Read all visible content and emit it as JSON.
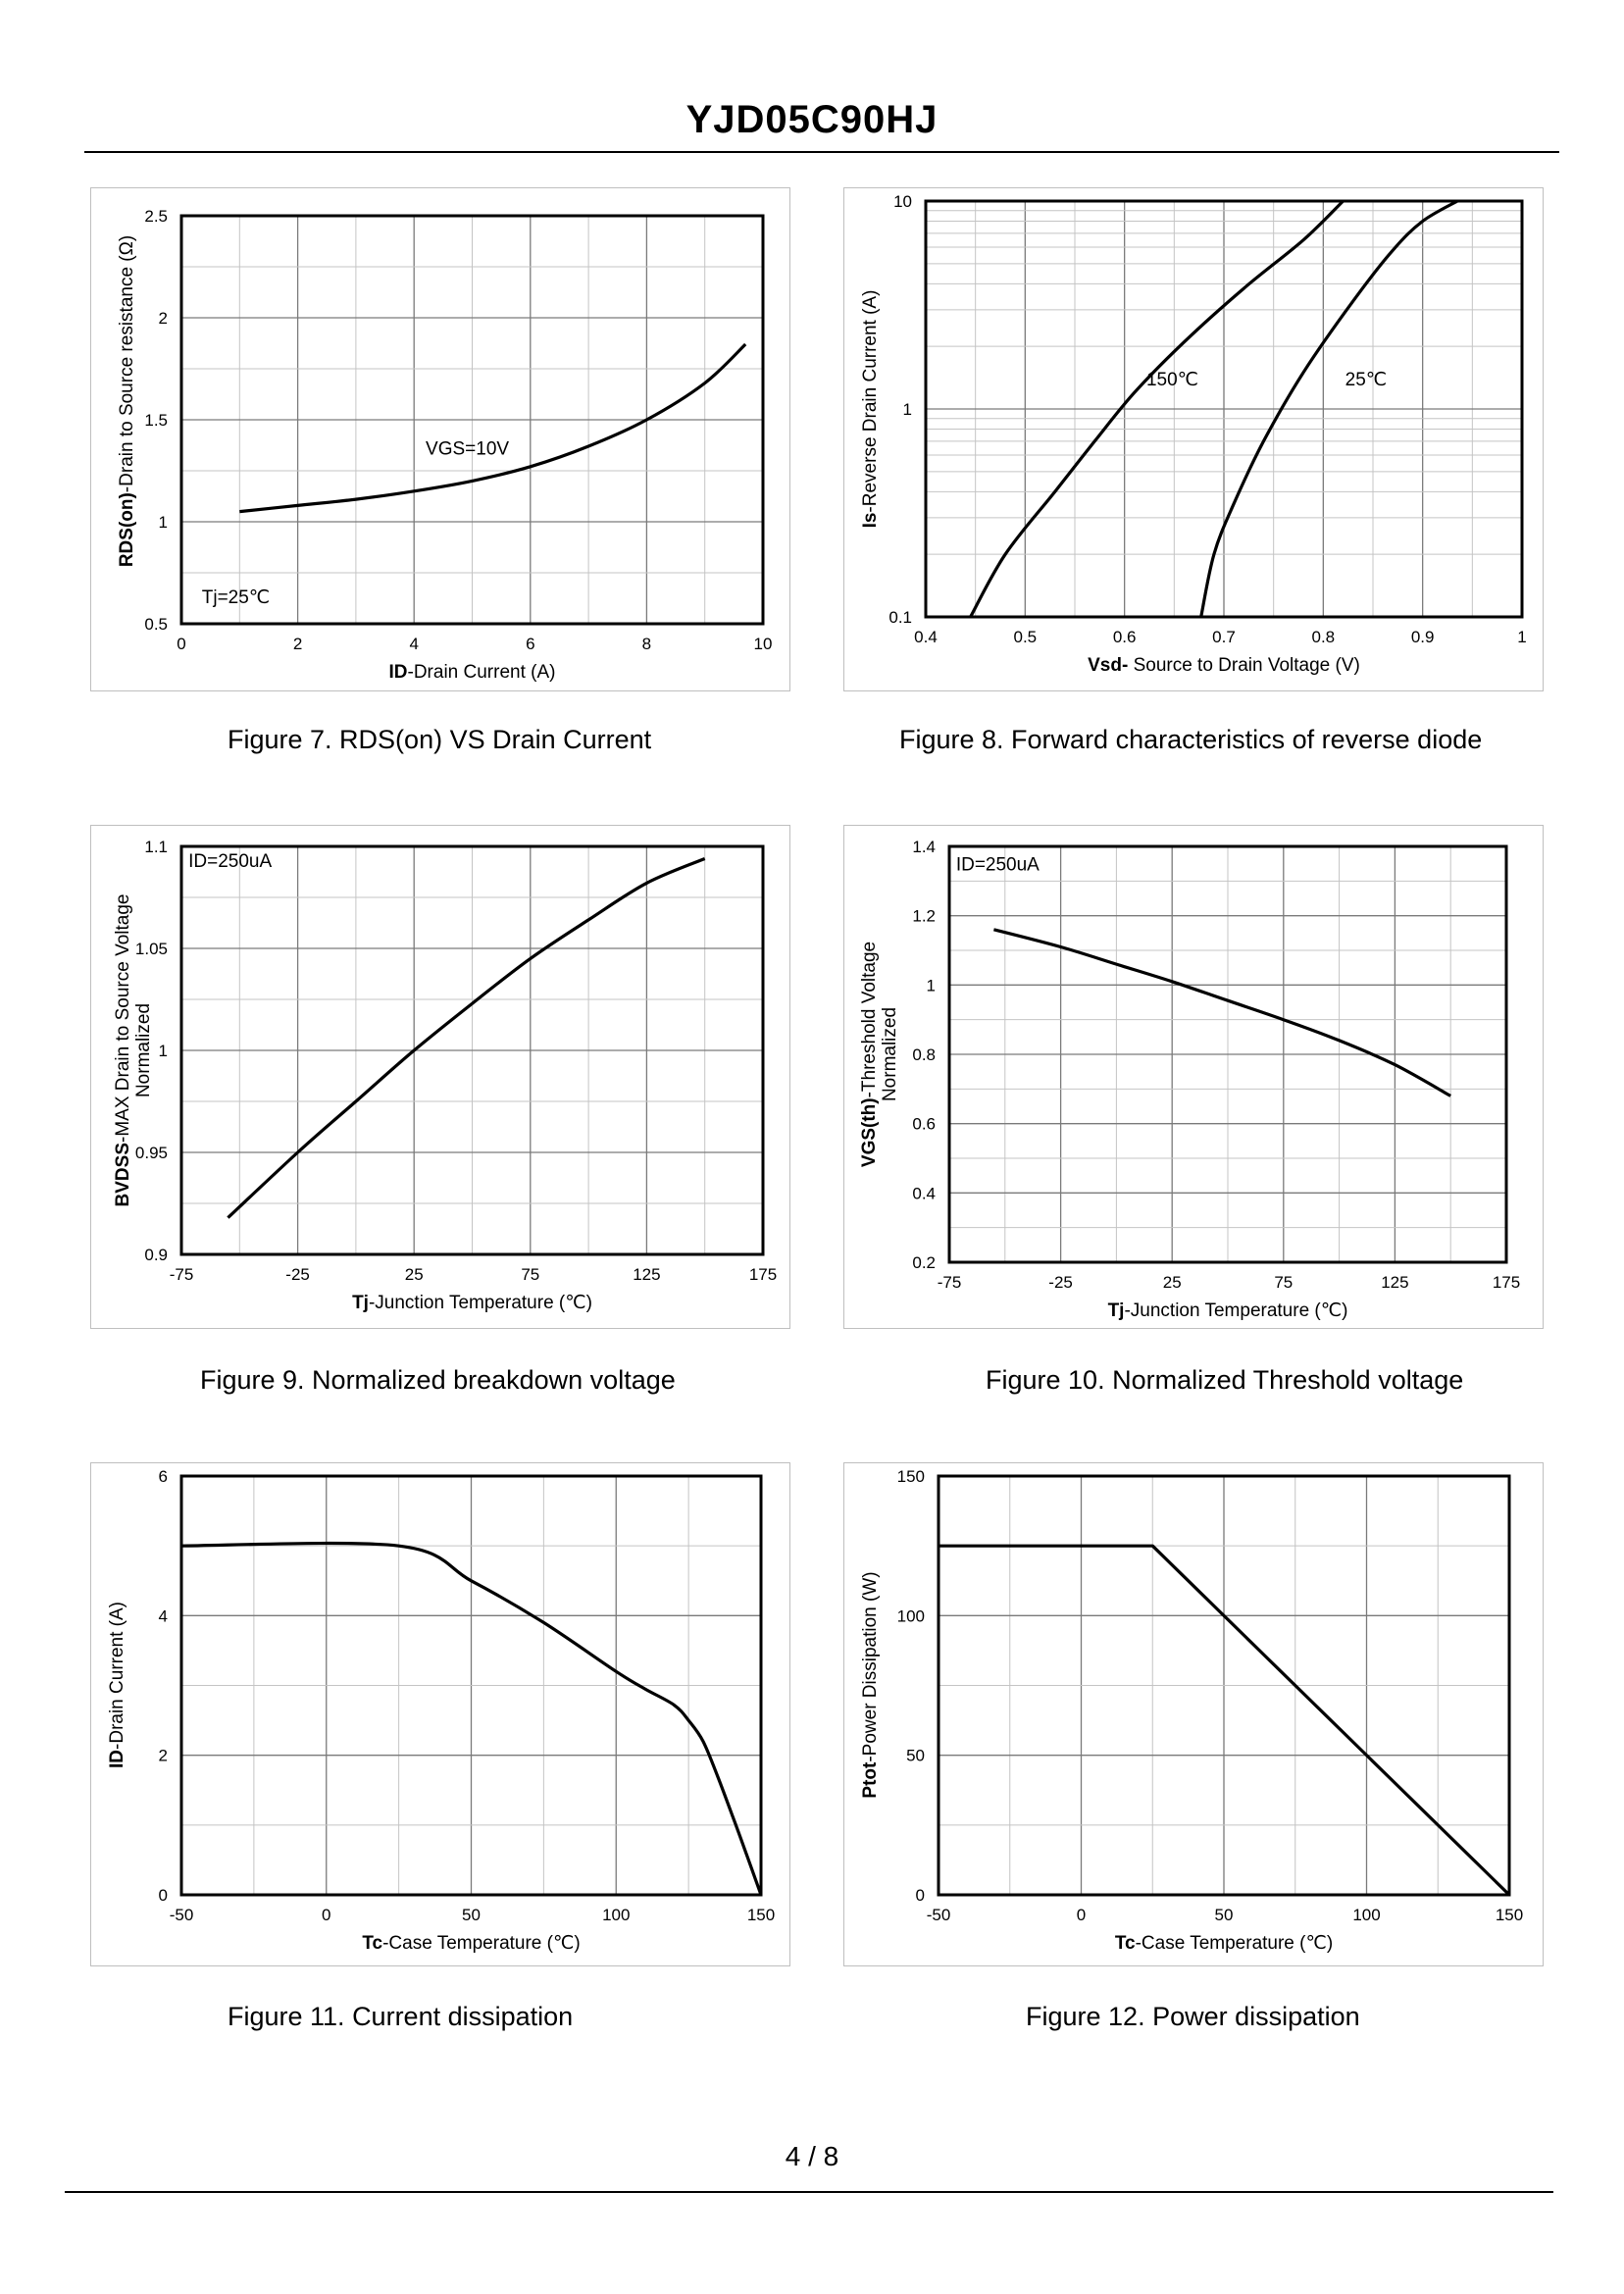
{
  "document": {
    "title": "YJD05C90HJ",
    "page_number": "4 / 8"
  },
  "chart_data": [
    {
      "id": "fig7",
      "type": "line",
      "caption": "Figure 7.  RDS(on) VS Drain Current",
      "ylabel_bold": "RDS(on)",
      "ylabel_rest": "-Drain to Source resistance (Ω)",
      "xlabel_bold": "ID",
      "xlabel_rest": "-Drain Current (A)",
      "x_scale": "linear",
      "y_scale": "linear",
      "xlim": [
        0,
        10
      ],
      "ylim": [
        0.5,
        2.5
      ],
      "xticks": [
        0,
        2,
        4,
        6,
        8,
        10
      ],
      "xtick_labels": [
        "0",
        "2",
        "4",
        "6",
        "8",
        "10"
      ],
      "yticks": [
        0.5,
        1,
        1.5,
        2,
        2.5
      ],
      "ytick_labels": [
        "0.5",
        "1",
        "1.5",
        "2",
        "2.5"
      ],
      "xgrid_minor": 1,
      "ygrid_minor": 0.25,
      "series": [
        {
          "name": "VGS=10V",
          "x": [
            1,
            2,
            3,
            4,
            5,
            6,
            7,
            8,
            9,
            9.7
          ],
          "y": [
            1.05,
            1.08,
            1.11,
            1.15,
            1.2,
            1.27,
            1.37,
            1.5,
            1.68,
            1.87
          ]
        }
      ],
      "annotations": [
        {
          "text": "VGS=10V",
          "x": 4.2,
          "y": 1.33
        },
        {
          "text": "Tj=25℃",
          "x": 0.35,
          "y": 0.6
        }
      ]
    },
    {
      "id": "fig8",
      "type": "line",
      "caption": "Figure 8.  Forward characteristics of reverse diode",
      "ylabel_bold": "Is",
      "ylabel_rest": "-Reverse  Drain Current (A)",
      "xlabel_bold": "Vsd-",
      "xlabel_rest": " Source to Drain Voltage (V)",
      "x_scale": "linear",
      "y_scale": "log",
      "xlim": [
        0.4,
        1
      ],
      "ylim": [
        0.1,
        10
      ],
      "xticks": [
        0.4,
        0.5,
        0.6,
        0.7,
        0.8,
        0.9,
        1
      ],
      "xtick_labels": [
        "0.4",
        "0.5",
        "0.6",
        "0.7",
        "0.8",
        "0.9",
        "1"
      ],
      "yticks": [
        0.1,
        1,
        10
      ],
      "ytick_labels": [
        "0.1",
        "1",
        "10"
      ],
      "xgrid_minor": 0.05,
      "series": [
        {
          "name": "150℃",
          "x": [
            0.445,
            0.48,
            0.53,
            0.57,
            0.61,
            0.66,
            0.72,
            0.78,
            0.82
          ],
          "y": [
            0.1,
            0.2,
            0.4,
            0.7,
            1.2,
            2.1,
            3.8,
            6.5,
            10
          ]
        },
        {
          "name": "25℃",
          "x": [
            0.677,
            0.69,
            0.71,
            0.74,
            0.78,
            0.83,
            0.87,
            0.9,
            0.935
          ],
          "y": [
            0.1,
            0.2,
            0.35,
            0.7,
            1.5,
            3.3,
            5.8,
            8.0,
            10
          ]
        }
      ],
      "annotations": [
        {
          "text": "150℃",
          "x": 0.622,
          "y": 1.3
        },
        {
          "text": "25℃",
          "x": 0.822,
          "y": 1.3
        }
      ]
    },
    {
      "id": "fig9",
      "type": "line",
      "caption": "Figure 9.  Normalized breakdown voltage",
      "ylabel_bold": "BVDSS",
      "ylabel_rest": "-MAX Drain to Source Voltage",
      "ylabel_line2": "Normalized",
      "xlabel_bold": "Tj",
      "xlabel_rest": "-Junction  Temperature (℃)",
      "x_scale": "linear",
      "y_scale": "linear",
      "xlim": [
        -75,
        175
      ],
      "ylim": [
        0.9,
        1.1
      ],
      "xticks": [
        -75,
        -25,
        25,
        75,
        125,
        175
      ],
      "xtick_labels": [
        "-75",
        "-25",
        "25",
        "75",
        "125",
        "175"
      ],
      "yticks": [
        0.9,
        0.95,
        1,
        1.05,
        1.1
      ],
      "ytick_labels": [
        "0.9",
        "0.95",
        "1",
        "1.05",
        "1.1"
      ],
      "xgrid_minor": 25,
      "ygrid_minor": 0.025,
      "series": [
        {
          "name": "ID=250uA",
          "x": [
            -55,
            -25,
            0,
            25,
            50,
            75,
            100,
            125,
            150
          ],
          "y": [
            0.918,
            0.95,
            0.975,
            1.0,
            1.023,
            1.045,
            1.064,
            1.082,
            1.094
          ]
        }
      ],
      "annotations": [
        {
          "text": "ID=250uA",
          "x": -72,
          "y": 1.09
        }
      ]
    },
    {
      "id": "fig10",
      "type": "line",
      "caption": "Figure 10.  Normalized Threshold voltage",
      "ylabel_bold": "VGS(th)",
      "ylabel_rest": "-Threshold  Voltage",
      "ylabel_line2": "Normalized",
      "xlabel_bold": "Tj",
      "xlabel_rest": "-Junction  Temperature (℃)",
      "x_scale": "linear",
      "y_scale": "linear",
      "xlim": [
        -75,
        175
      ],
      "ylim": [
        0.2,
        1.4
      ],
      "xticks": [
        -75,
        -25,
        25,
        75,
        125,
        175
      ],
      "xtick_labels": [
        "-75",
        "-25",
        "25",
        "75",
        "125",
        "175"
      ],
      "yticks": [
        0.2,
        0.4,
        0.6,
        0.8,
        1,
        1.2,
        1.4
      ],
      "ytick_labels": [
        "0.2",
        "0.4",
        "0.6",
        "0.8",
        "1",
        "1.2",
        "1.4"
      ],
      "xgrid_minor": 25,
      "ygrid_minor": 0.1,
      "series": [
        {
          "name": "ID=250uA",
          "x": [
            -55,
            -25,
            0,
            25,
            50,
            75,
            100,
            125,
            150
          ],
          "y": [
            1.16,
            1.11,
            1.06,
            1.01,
            0.955,
            0.9,
            0.84,
            0.77,
            0.68
          ]
        }
      ],
      "annotations": [
        {
          "text": "ID=250uA",
          "x": -72,
          "y": 1.33
        }
      ]
    },
    {
      "id": "fig11",
      "type": "line",
      "caption": "Figure 11.  Current dissipation",
      "ylabel_bold": "ID",
      "ylabel_rest": "-Drain Current (A)",
      "xlabel_bold": "Tc",
      "xlabel_rest": "-Case Temperature (℃)",
      "x_scale": "linear",
      "y_scale": "linear",
      "xlim": [
        -50,
        150
      ],
      "ylim": [
        0,
        6
      ],
      "xticks": [
        -50,
        0,
        50,
        100,
        150
      ],
      "xtick_labels": [
        "-50",
        "0",
        "50",
        "100",
        "150"
      ],
      "yticks": [
        0,
        2,
        4,
        6
      ],
      "ytick_labels": [
        "0",
        "2",
        "4",
        "6"
      ],
      "xgrid_minor": 25,
      "ygrid_minor": 1,
      "series": [
        {
          "name": "ID",
          "x": [
            -50,
            25,
            50,
            75,
            100,
            110,
            120,
            125,
            130,
            135,
            140,
            145,
            150
          ],
          "y": [
            5,
            5,
            4.5,
            3.9,
            3.2,
            2.95,
            2.72,
            2.5,
            2.2,
            1.7,
            1.15,
            0.58,
            0
          ]
        }
      ],
      "annotations": []
    },
    {
      "id": "fig12",
      "type": "line",
      "caption": "Figure 12.  Power dissipation",
      "ylabel_bold": "Ptot",
      "ylabel_rest": "-Power Dissipation (W)",
      "xlabel_bold": "Tc",
      "xlabel_rest": "-Case Temperature (℃)",
      "x_scale": "linear",
      "y_scale": "linear",
      "xlim": [
        -50,
        150
      ],
      "ylim": [
        0,
        150
      ],
      "xticks": [
        -50,
        0,
        50,
        100,
        150
      ],
      "xtick_labels": [
        "-50",
        "0",
        "50",
        "100",
        "150"
      ],
      "yticks": [
        0,
        50,
        100,
        150
      ],
      "ytick_labels": [
        "0",
        "50",
        "100",
        "150"
      ],
      "xgrid_minor": 25,
      "ygrid_minor": 25,
      "series": [
        {
          "name": "Ptot",
          "x": [
            -50,
            25,
            150
          ],
          "y": [
            125,
            125,
            0
          ]
        }
      ],
      "annotations": []
    }
  ]
}
